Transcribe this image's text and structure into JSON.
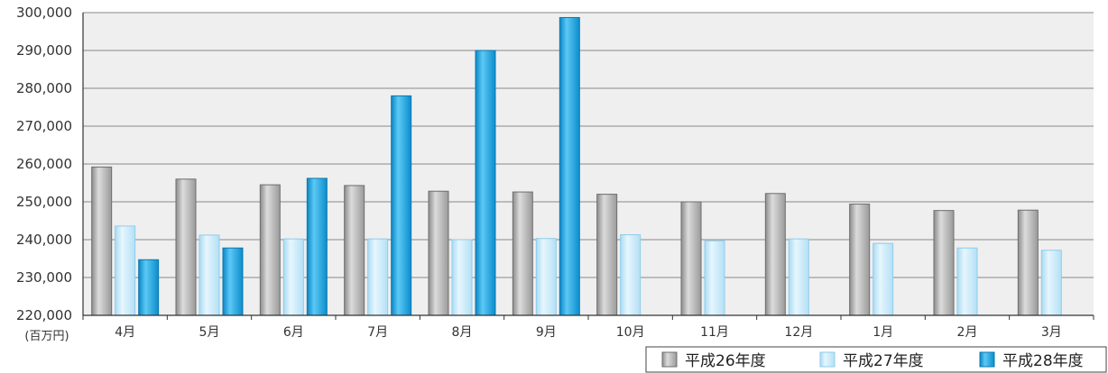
{
  "chart_data": {
    "type": "bar",
    "unit_label": "(百万円)",
    "categories": [
      "4月",
      "5月",
      "6月",
      "7月",
      "8月",
      "9月",
      "10月",
      "11月",
      "12月",
      "1月",
      "2月",
      "3月"
    ],
    "ylim": [
      220000,
      300000
    ],
    "yticks": [
      220000,
      230000,
      240000,
      250000,
      260000,
      270000,
      280000,
      290000,
      300000
    ],
    "ytick_labels": [
      "220,000",
      "230,000",
      "240,000",
      "250,000",
      "260,000",
      "270,000",
      "280,000",
      "290,000",
      "300,000"
    ],
    "grid": true,
    "legend_position": "bottom-right",
    "series": [
      {
        "name": "平成26年度",
        "color": "#a6a6a6",
        "values": [
          259200,
          256000,
          254500,
          254300,
          252800,
          252600,
          252000,
          250000,
          252200,
          249400,
          247700,
          247800
        ]
      },
      {
        "name": "平成27年度",
        "color": "#bfe5f7",
        "values": [
          243600,
          241200,
          240200,
          240200,
          240000,
          240300,
          241300,
          239700,
          240200,
          239000,
          237800,
          237200
        ]
      },
      {
        "name": "平成28年度",
        "color": "#1aa4e0",
        "values": [
          234700,
          237800,
          256200,
          278000,
          290000,
          298700,
          null,
          null,
          null,
          null,
          null,
          null
        ]
      }
    ]
  }
}
